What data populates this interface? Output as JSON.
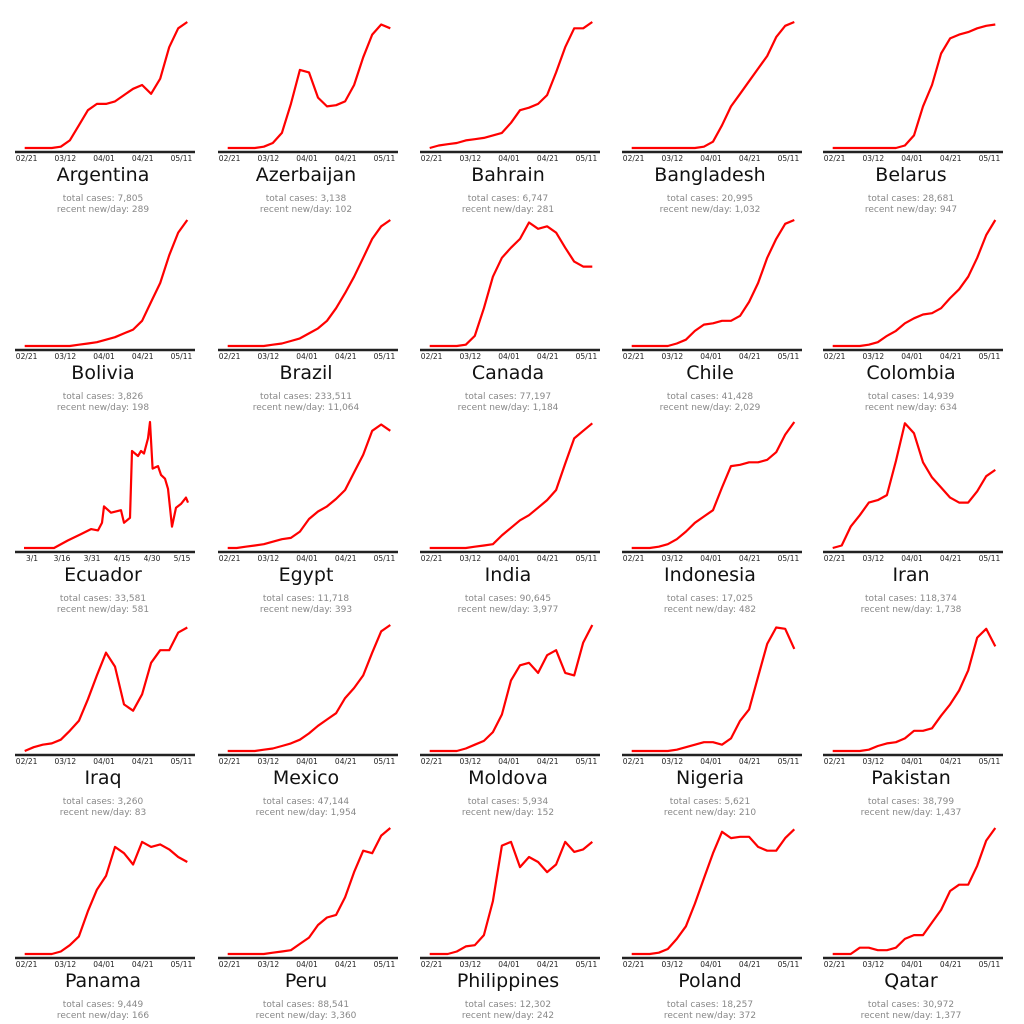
{
  "chart_data": [
    {
      "type": "line",
      "title": "Argentina",
      "total_cases": "total cases: 7,805",
      "recent": "recent new/day: 289",
      "xticks": [
        "02/21",
        "03/12",
        "04/01",
        "04/21",
        "05/11"
      ],
      "values": [
        0,
        0,
        0,
        0,
        0.01,
        0.06,
        0.18,
        0.3,
        0.35,
        0.35,
        0.37,
        0.42,
        0.47,
        0.5,
        0.43,
        0.55,
        0.8,
        0.95,
        1
      ]
    },
    {
      "type": "line",
      "title": "Azerbaijan",
      "total_cases": "total cases: 3,138",
      "recent": "recent new/day: 102",
      "xticks": [
        "02/21",
        "03/12",
        "04/01",
        "04/21",
        "05/11"
      ],
      "values": [
        0,
        0,
        0,
        0,
        0.01,
        0.04,
        0.12,
        0.35,
        0.62,
        0.6,
        0.4,
        0.33,
        0.34,
        0.37,
        0.5,
        0.72,
        0.9,
        0.98,
        0.95
      ]
    },
    {
      "type": "line",
      "title": "Bahrain",
      "total_cases": "total cases: 6,747",
      "recent": "recent new/day: 281",
      "xticks": [
        "02/21",
        "03/12",
        "04/01",
        "04/21",
        "05/11"
      ],
      "values": [
        0,
        0.02,
        0.03,
        0.04,
        0.06,
        0.07,
        0.08,
        0.1,
        0.12,
        0.2,
        0.3,
        0.32,
        0.35,
        0.42,
        0.6,
        0.8,
        0.95,
        0.95,
        1
      ]
    },
    {
      "type": "line",
      "title": "Bangladesh",
      "total_cases": "total cases: 20,995",
      "recent": "recent new/day: 1,032",
      "xticks": [
        "02/21",
        "03/12",
        "04/01",
        "04/21",
        "05/11"
      ],
      "values": [
        0,
        0,
        0,
        0,
        0,
        0,
        0,
        0,
        0.01,
        0.05,
        0.18,
        0.33,
        0.43,
        0.53,
        0.63,
        0.73,
        0.88,
        0.97,
        1
      ]
    },
    {
      "type": "line",
      "title": "Belarus",
      "total_cases": "total cases: 28,681",
      "recent": "recent new/day: 947",
      "xticks": [
        "02/21",
        "03/12",
        "04/01",
        "04/21",
        "05/11"
      ],
      "values": [
        0,
        0,
        0,
        0,
        0,
        0,
        0,
        0,
        0.02,
        0.1,
        0.33,
        0.5,
        0.75,
        0.87,
        0.9,
        0.92,
        0.95,
        0.97,
        0.98
      ]
    },
    {
      "type": "line",
      "title": "Bolivia",
      "total_cases": "total cases: 3,826",
      "recent": "recent new/day: 198",
      "xticks": [
        "02/21",
        "03/12",
        "04/01",
        "04/21",
        "05/11"
      ],
      "values": [
        0,
        0,
        0,
        0,
        0,
        0,
        0.01,
        0.02,
        0.03,
        0.05,
        0.07,
        0.1,
        0.13,
        0.2,
        0.35,
        0.5,
        0.72,
        0.9,
        1
      ]
    },
    {
      "type": "line",
      "title": "Brazil",
      "total_cases": "total cases: 233,511",
      "recent": "recent new/day: 11,064",
      "xticks": [
        "02/21",
        "03/12",
        "04/01",
        "04/21",
        "05/11"
      ],
      "values": [
        0,
        0,
        0,
        0,
        0,
        0.01,
        0.02,
        0.04,
        0.06,
        0.1,
        0.14,
        0.2,
        0.3,
        0.42,
        0.55,
        0.7,
        0.85,
        0.95,
        1
      ]
    },
    {
      "type": "line",
      "title": "Canada",
      "total_cases": "total cases: 77,197",
      "recent": "recent new/day: 1,184",
      "xticks": [
        "02/21",
        "03/12",
        "04/01",
        "04/21",
        "05/11"
      ],
      "values": [
        0,
        0,
        0,
        0,
        0.01,
        0.08,
        0.3,
        0.55,
        0.7,
        0.78,
        0.85,
        0.98,
        0.93,
        0.95,
        0.9,
        0.78,
        0.67,
        0.63,
        0.63
      ]
    },
    {
      "type": "line",
      "title": "Chile",
      "total_cases": "total cases: 41,428",
      "recent": "recent new/day: 2,029",
      "xticks": [
        "02/21",
        "03/12",
        "04/01",
        "04/21",
        "05/11"
      ],
      "values": [
        0,
        0,
        0,
        0,
        0,
        0.02,
        0.05,
        0.12,
        0.17,
        0.18,
        0.2,
        0.2,
        0.24,
        0.35,
        0.5,
        0.7,
        0.85,
        0.97,
        1
      ]
    },
    {
      "type": "line",
      "title": "Colombia",
      "total_cases": "total cases: 14,939",
      "recent": "recent new/day: 634",
      "xticks": [
        "02/21",
        "03/12",
        "04/01",
        "04/21",
        "05/11"
      ],
      "values": [
        0,
        0,
        0,
        0,
        0.01,
        0.03,
        0.08,
        0.12,
        0.18,
        0.22,
        0.25,
        0.26,
        0.3,
        0.38,
        0.45,
        0.55,
        0.7,
        0.88,
        1
      ]
    },
    {
      "type": "line",
      "title": "Ecuador",
      "total_cases": "total cases: 33,581",
      "recent": "recent new/day: 581",
      "xticks": [
        "3/1",
        "3/16",
        "3/31",
        "4/15",
        "4/30",
        "5/15"
      ],
      "x": [
        -4,
        5,
        11,
        18,
        24.5,
        29.5,
        33,
        35,
        36,
        39.5,
        44.5,
        46,
        49,
        50,
        53,
        54.5,
        56,
        58,
        59,
        60.3,
        63,
        64.5,
        66.5,
        68,
        70,
        72,
        74.5,
        77,
        78
      ],
      "values": [
        0,
        0,
        0,
        0.06,
        0.11,
        0.15,
        0.14,
        0.2,
        0.33,
        0.28,
        0.3,
        0.2,
        0.24,
        0.77,
        0.73,
        0.77,
        0.75,
        0.87,
        1,
        0.63,
        0.65,
        0.58,
        0.55,
        0.47,
        0.17,
        0.32,
        0.35,
        0.4,
        0.36
      ]
    },
    {
      "type": "line",
      "title": "Egypt",
      "total_cases": "total cases: 11,718",
      "recent": "recent new/day: 393",
      "xticks": [
        "02/21",
        "03/12",
        "04/01",
        "04/21",
        "05/11"
      ],
      "values": [
        0,
        0,
        0.01,
        0.02,
        0.03,
        0.05,
        0.07,
        0.08,
        0.13,
        0.23,
        0.29,
        0.33,
        0.39,
        0.46,
        0.6,
        0.74,
        0.93,
        0.98,
        0.93
      ]
    },
    {
      "type": "line",
      "title": "India",
      "total_cases": "total cases: 90,645",
      "recent": "recent new/day: 3,977",
      "xticks": [
        "02/21",
        "03/12",
        "04/01",
        "04/21",
        "05/11"
      ],
      "values": [
        0,
        0,
        0,
        0,
        0,
        0.01,
        0.02,
        0.03,
        0.1,
        0.16,
        0.22,
        0.26,
        0.32,
        0.38,
        0.46,
        0.67,
        0.87,
        0.93,
        0.99
      ]
    },
    {
      "type": "line",
      "title": "Indonesia",
      "total_cases": "total cases: 17,025",
      "recent": "recent new/day: 482",
      "xticks": [
        "02/21",
        "03/12",
        "04/01",
        "04/21",
        "05/11"
      ],
      "values": [
        0,
        0,
        0,
        0.01,
        0.03,
        0.07,
        0.13,
        0.2,
        0.25,
        0.3,
        0.48,
        0.65,
        0.66,
        0.68,
        0.68,
        0.7,
        0.76,
        0.9,
        1
      ]
    },
    {
      "type": "line",
      "title": "Iran",
      "total_cases": "total cases: 118,374",
      "recent": "recent new/day: 1,738",
      "xticks": [
        "02/21",
        "03/12",
        "04/01",
        "04/21",
        "05/11"
      ],
      "values": [
        0,
        0.02,
        0.17,
        0.26,
        0.36,
        0.38,
        0.42,
        0.69,
        0.99,
        0.91,
        0.68,
        0.56,
        0.48,
        0.4,
        0.36,
        0.36,
        0.45,
        0.57,
        0.62
      ]
    },
    {
      "type": "line",
      "title": "Iraq",
      "total_cases": "total cases: 3,260",
      "recent": "recent new/day: 83",
      "xticks": [
        "02/21",
        "03/12",
        "04/01",
        "04/21",
        "05/11"
      ],
      "values": [
        0,
        0.03,
        0.05,
        0.06,
        0.09,
        0.16,
        0.24,
        0.41,
        0.6,
        0.78,
        0.67,
        0.37,
        0.32,
        0.45,
        0.7,
        0.8,
        0.8,
        0.94,
        0.98
      ]
    },
    {
      "type": "line",
      "title": "Mexico",
      "total_cases": "total cases: 47,144",
      "recent": "recent new/day: 1,954",
      "xticks": [
        "02/21",
        "03/12",
        "04/01",
        "04/21",
        "05/11"
      ],
      "values": [
        0,
        0,
        0,
        0,
        0.01,
        0.02,
        0.04,
        0.06,
        0.09,
        0.14,
        0.2,
        0.25,
        0.3,
        0.42,
        0.5,
        0.6,
        0.78,
        0.95,
        1
      ]
    },
    {
      "type": "line",
      "title": "Moldova",
      "total_cases": "total cases: 5,934",
      "recent": "recent new/day: 152",
      "xticks": [
        "02/21",
        "03/12",
        "04/01",
        "04/21",
        "05/11"
      ],
      "values": [
        0,
        0,
        0,
        0,
        0.02,
        0.05,
        0.08,
        0.15,
        0.29,
        0.56,
        0.68,
        0.7,
        0.62,
        0.76,
        0.8,
        0.62,
        0.6,
        0.86,
        1
      ]
    },
    {
      "type": "line",
      "title": "Nigeria",
      "total_cases": "total cases: 5,621",
      "recent": "recent new/day: 210",
      "xticks": [
        "02/21",
        "03/12",
        "04/01",
        "04/21",
        "05/11"
      ],
      "values": [
        0,
        0,
        0,
        0,
        0,
        0.01,
        0.03,
        0.05,
        0.07,
        0.07,
        0.05,
        0.1,
        0.24,
        0.33,
        0.59,
        0.85,
        0.98,
        0.97,
        0.81
      ]
    },
    {
      "type": "line",
      "title": "Pakistan",
      "total_cases": "total cases: 38,799",
      "recent": "recent new/day: 1,437",
      "xticks": [
        "02/21",
        "03/12",
        "04/01",
        "04/21",
        "05/11"
      ],
      "values": [
        0,
        0,
        0,
        0,
        0.01,
        0.04,
        0.06,
        0.07,
        0.1,
        0.16,
        0.16,
        0.18,
        0.28,
        0.37,
        0.48,
        0.64,
        0.9,
        0.97,
        0.83
      ]
    },
    {
      "type": "line",
      "title": "Panama",
      "total_cases": "total cases: 9,449",
      "recent": "recent new/day: 166",
      "xticks": [
        "02/21",
        "03/12",
        "04/01",
        "04/21",
        "05/11"
      ],
      "values": [
        0,
        0,
        0,
        0,
        0.02,
        0.07,
        0.14,
        0.34,
        0.51,
        0.62,
        0.85,
        0.8,
        0.71,
        0.89,
        0.85,
        0.87,
        0.83,
        0.77,
        0.73
      ]
    },
    {
      "type": "line",
      "title": "Peru",
      "total_cases": "total cases: 88,541",
      "recent": "recent new/day: 3,360",
      "xticks": [
        "02/21",
        "03/12",
        "04/01",
        "04/21",
        "05/11"
      ],
      "values": [
        0,
        0,
        0,
        0,
        0,
        0.01,
        0.02,
        0.03,
        0.08,
        0.13,
        0.23,
        0.29,
        0.31,
        0.45,
        0.65,
        0.82,
        0.8,
        0.94,
        1
      ]
    },
    {
      "type": "line",
      "title": "Philippines",
      "total_cases": "total cases: 12,302",
      "recent": "recent new/day: 242",
      "xticks": [
        "02/21",
        "03/12",
        "04/01",
        "04/21",
        "05/11"
      ],
      "values": [
        0,
        0,
        0,
        0.02,
        0.06,
        0.07,
        0.15,
        0.42,
        0.86,
        0.89,
        0.69,
        0.77,
        0.73,
        0.65,
        0.71,
        0.89,
        0.81,
        0.83,
        0.89
      ]
    },
    {
      "type": "line",
      "title": "Poland",
      "total_cases": "total cases: 18,257",
      "recent": "recent new/day: 372",
      "xticks": [
        "02/21",
        "03/12",
        "04/01",
        "04/21",
        "05/11"
      ],
      "values": [
        0,
        0,
        0,
        0.01,
        0.04,
        0.12,
        0.22,
        0.4,
        0.6,
        0.8,
        0.97,
        0.92,
        0.93,
        0.93,
        0.85,
        0.82,
        0.82,
        0.92,
        0.99
      ]
    },
    {
      "type": "line",
      "title": "Qatar",
      "total_cases": "total cases: 30,972",
      "recent": "recent new/day: 1,377",
      "xticks": [
        "02/21",
        "03/12",
        "04/01",
        "04/21",
        "05/11"
      ],
      "values": [
        0,
        0,
        0,
        0.05,
        0.05,
        0.03,
        0.03,
        0.05,
        0.12,
        0.15,
        0.15,
        0.25,
        0.35,
        0.5,
        0.55,
        0.55,
        0.7,
        0.9,
        1
      ]
    }
  ],
  "colors": {
    "line": "#ff0000",
    "axis": "#222222",
    "subtext": "#888888"
  }
}
